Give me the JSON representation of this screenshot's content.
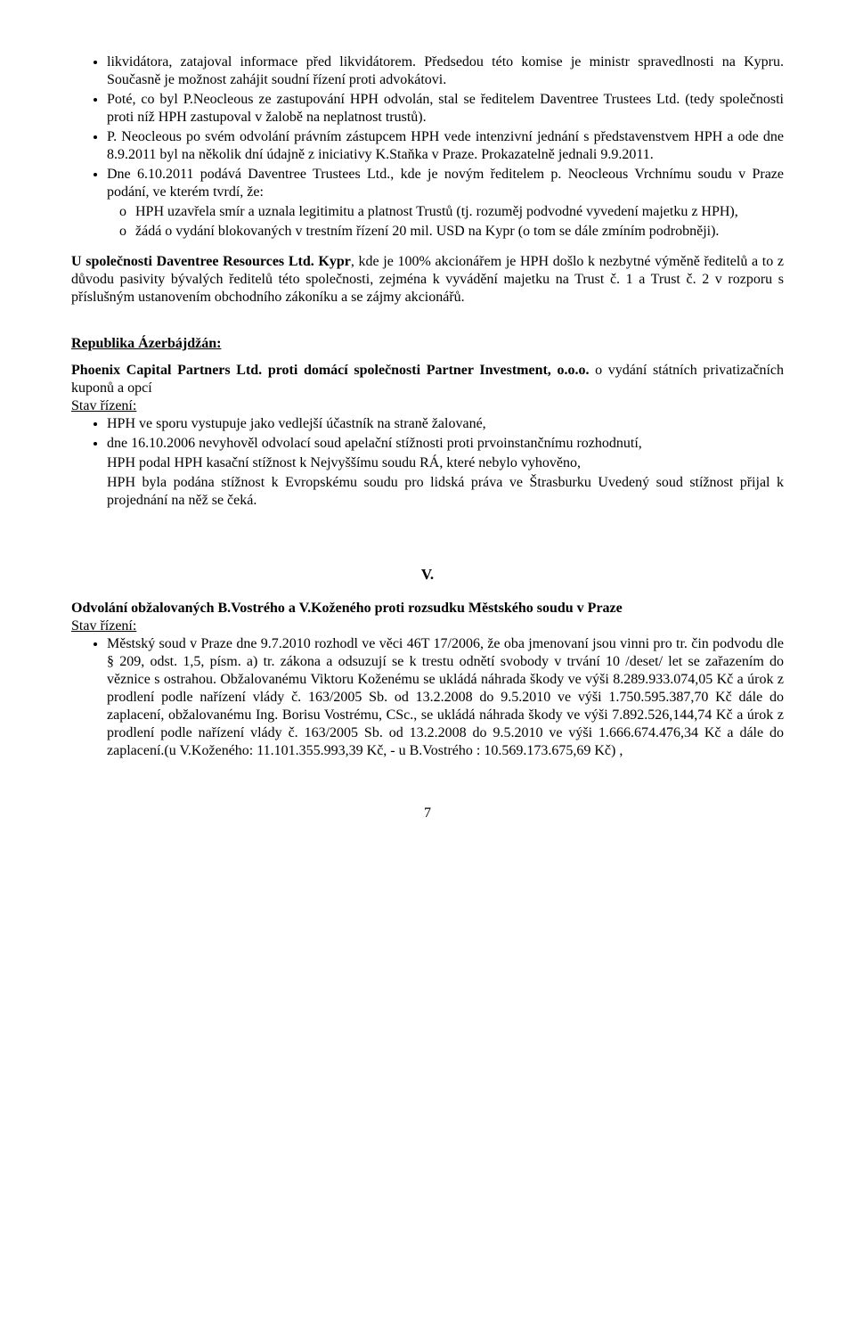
{
  "b1_li1": "likvidátora, zatajoval informace před likvidátorem. Předsedou této komise je ministr spravedlnosti na Kypru. Současně je možnost zahájit soudní řízení proti advokátovi.",
  "b1_li2": "Poté, co byl P.Neocleous ze zastupování HPH odvolán, stal se ředitelem Daventree Trustees Ltd. (tedy společnosti proti níž HPH zastupoval v žalobě na neplatnost trustů).",
  "b1_li3": "P. Neocleous po svém odvolání právním zástupcem HPH vede intenzivní jednání s představenstvem HPH a ode dne 8.9.2011 byl na několik dní údajně z iniciativy K.Staňka v Praze. Prokazatelně jednali 9.9.2011.",
  "b1_li4_a": "Dne 6.10.2011 podává Daventree Trustees Ltd., kde je novým ředitelem p. Neocleous Vrchnímu soudu v Praze podání, ve kterém tvrdí, že:",
  "b1_li4_s1": "HPH uzavřela smír a uznala legitimitu a platnost Trustů (tj. rozuměj podvodné vyvedení majetku z HPH),",
  "b1_li4_s2": "žádá o vydání blokovaných v trestním řízení 20 mil. USD na Kypr (o tom se dále zmíním podrobněji).",
  "p2_bold": "U společnosti Daventree Resources Ltd. Kypr",
  "p2_rest": ", kde je 100% akcionářem je HPH došlo k nezbytné výměně ředitelů a to z důvodu pasivity bývalých ředitelů této společnosti, zejména k vyvádění majetku na Trust č. 1 a Trust č. 2 v rozporu s příslušným ustanovením obchodního zákoníku a se zájmy akcionářů.",
  "h_az": "Republika Ázerbájdžán:",
  "p3_bold": "Phoenix Capital Partners Ltd. proti  domácí společnosti Partner Investment, o.o.o.",
  "p3_rest": " o vydání státních privatizačních kuponů a opcí",
  "stav": "Stav řízení:",
  "az_li1": "HPH ve sporu vystupuje jako vedlejší účastník na straně žalované,",
  "az_li2": "dne 16.10.2006 nevyhověl odvolací soud apelační stížnosti proti prvoinstančnímu rozhodnutí,",
  "az_li3": "HPH podal HPH  kasační stížnost k Nejvyššímu soudu RÁ, které nebylo vyhověno,",
  "az_li4": "HPH byla podána stížnost k Evropskému soudu pro lidská práva ve Štrasburku Uvedený soud stížnost přijal k projednání na něž se čeká.",
  "roman": "V.",
  "p4_bold": "Odvolání obžalovaných B.Vostrého a V.Koženého proti rozsudku Městského soudu v Praze",
  "odv_li1": "Městský soud v Praze dne 9.7.2010 rozhodl ve věci 46T 17/2006, že oba jmenovaní jsou vinni  pro tr. čin podvodu dle § 209, odst. 1,5, písm. a) tr. zákona a odsuzují se k trestu odnětí svobody v trvání 10 /deset/ let se zařazením do věznice s ostrahou. Obžalovanému Viktoru Koženému se ukládá náhrada škody ve výši 8.289.933.074,05 Kč a úrok z prodlení podle nařízení vlády č. 163/2005 Sb. od 13.2.2008 do 9.5.2010 ve výši 1.750.595.387,70 Kč dále do zaplacení, obžalovanému Ing. Borisu Vostrému, CSc., se ukládá náhrada škody ve výši 7.892.526,144,74 Kč a úrok z prodlení podle nařízení vlády č. 163/2005 Sb. od 13.2.2008 do 9.5.2010  ve výši 1.666.674.476,34 Kč a dále do zaplacení.(u V.Koženého: 11.101.355.993,39 Kč, - u B.Vostrého : 10.569.173.675,69 Kč) ,",
  "page": "7"
}
